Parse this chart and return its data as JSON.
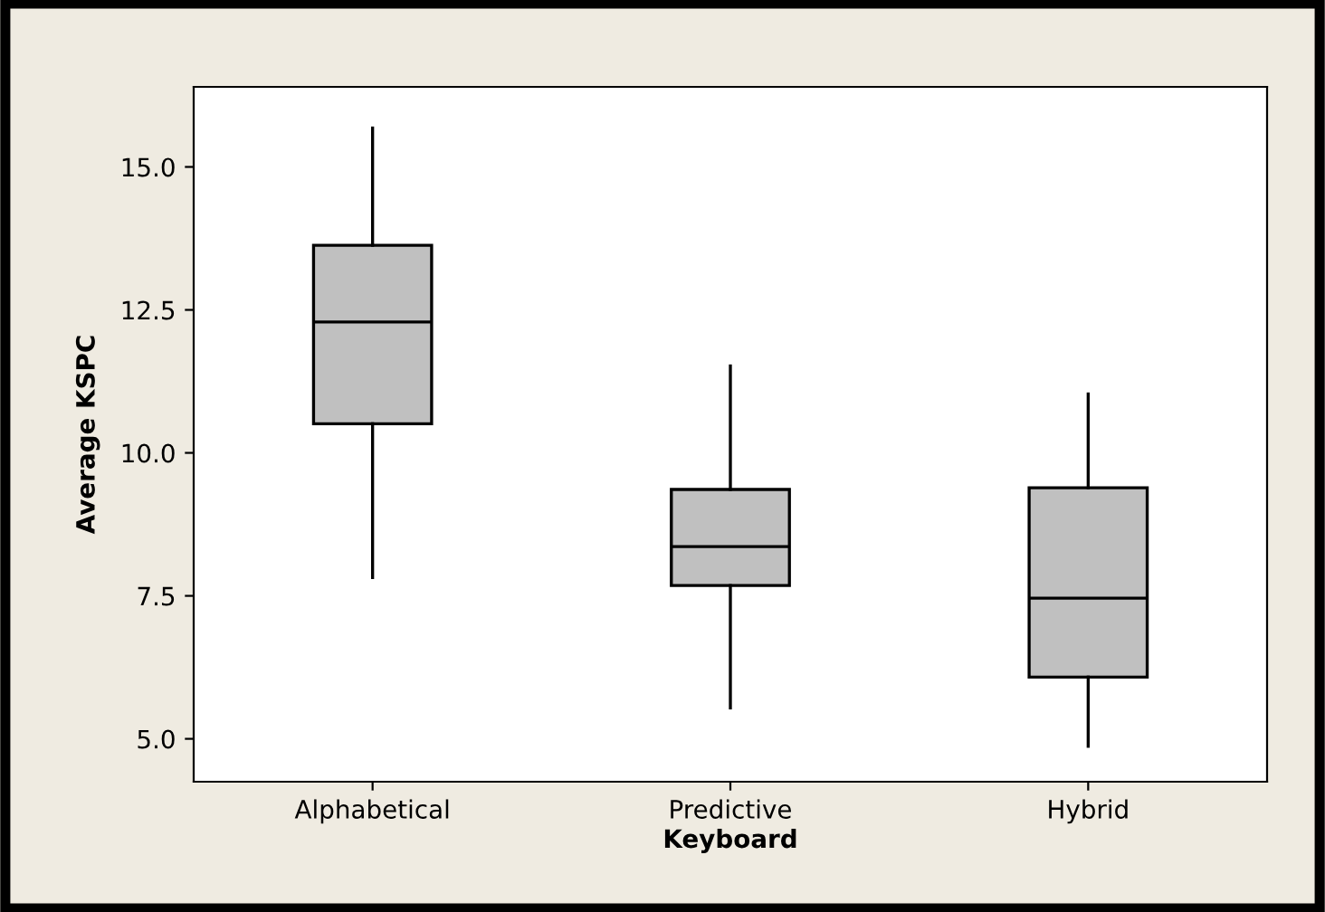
{
  "chart_data": {
    "type": "box",
    "xlabel": "Keyboard",
    "ylabel": "Average KSPC",
    "categories": [
      "Alphabetical",
      "Predictive",
      "Hybrid"
    ],
    "boxes": [
      {
        "low": 7.82,
        "q1": 10.51,
        "median": 12.29,
        "q3": 13.63,
        "high": 15.68
      },
      {
        "low": 5.54,
        "q1": 7.68,
        "median": 8.36,
        "q3": 9.36,
        "high": 11.52
      },
      {
        "low": 4.87,
        "q1": 6.08,
        "median": 7.46,
        "q3": 9.39,
        "high": 11.03
      }
    ],
    "color": "#c0c0c0",
    "ylim": [
      4.25,
      16.4
    ],
    "yticks": [
      {
        "value": 5,
        "label": "5.0"
      },
      {
        "value": 7.5,
        "label": "7.5"
      },
      {
        "value": 10,
        "label": "10.0"
      },
      {
        "value": 12.5,
        "label": "12.5"
      },
      {
        "value": 15,
        "label": "15.0"
      }
    ],
    "grid": false
  }
}
